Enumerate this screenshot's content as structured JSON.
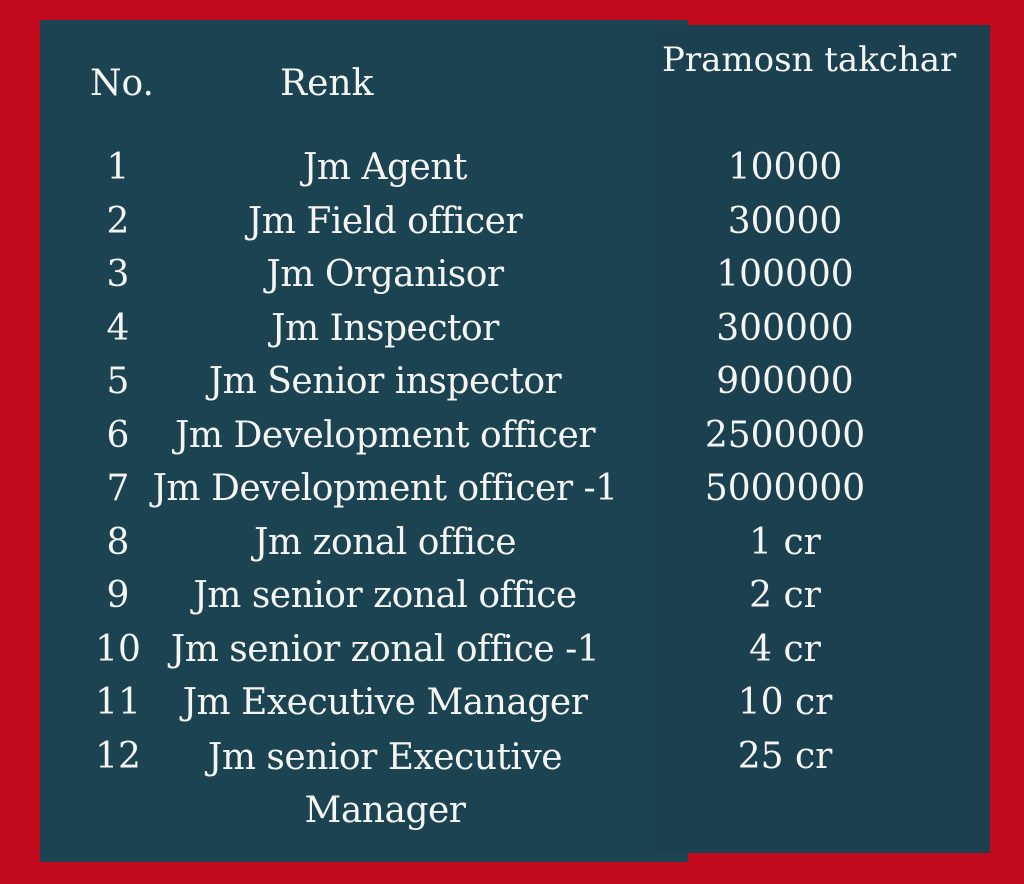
{
  "header": {
    "no": "No.",
    "rank": "Renk",
    "value": "Pramosn takchar"
  },
  "rows": [
    {
      "no": "1",
      "rank": "Jm Agent",
      "value": "10000"
    },
    {
      "no": "2",
      "rank": "Jm Field officer",
      "value": "30000"
    },
    {
      "no": "3",
      "rank": "Jm Organisor",
      "value": "100000"
    },
    {
      "no": "4",
      "rank": "Jm Inspector",
      "value": "300000"
    },
    {
      "no": "5",
      "rank": "Jm Senior inspector",
      "value": "900000"
    },
    {
      "no": "6",
      "rank": "Jm Development officer",
      "value": "2500000"
    },
    {
      "no": "7",
      "rank": "Jm Development officer -1",
      "value": "5000000"
    },
    {
      "no": "8",
      "rank": "Jm zonal office",
      "value": "1 cr"
    },
    {
      "no": "9",
      "rank": "Jm senior zonal office",
      "value": "2 cr"
    },
    {
      "no": "10",
      "rank": "Jm senior zonal office -1",
      "value": "4 cr"
    },
    {
      "no": "11",
      "rank": "Jm Executive Manager",
      "value": "10 cr"
    },
    {
      "no": "12",
      "rank": "Jm senior Executive Manager",
      "value": "25 cr"
    }
  ],
  "colors": {
    "background": "#c10b1d",
    "panel": "#1c4352",
    "text": "#f4f4f0"
  }
}
